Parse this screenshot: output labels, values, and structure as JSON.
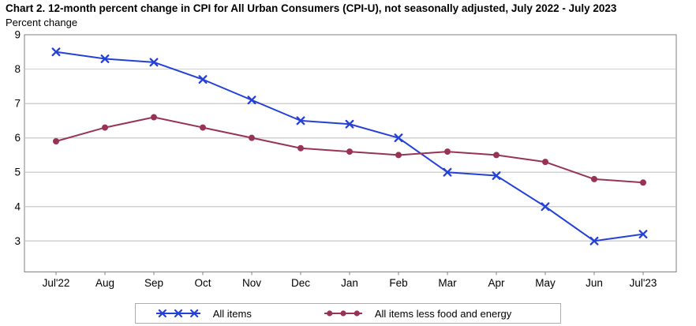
{
  "header": {
    "title": "Chart 2. 12-month percent change in CPI for All Urban Consumers (CPI-U), not seasonally adjusted, July 2022 - July 2023",
    "subtitle": "Percent change"
  },
  "chart_data": {
    "type": "line",
    "title": "Chart 2. 12-month percent change in CPI for All Urban Consumers (CPI-U), not seasonally adjusted, July 2022 - July 2023",
    "ylabel": "Percent change",
    "xlabel": "",
    "categories": [
      "Jul'22",
      "Aug",
      "Sep",
      "Oct",
      "Nov",
      "Dec",
      "Jan",
      "Feb",
      "Mar",
      "Apr",
      "May",
      "Jun",
      "Jul'23"
    ],
    "series": [
      {
        "name": "All items",
        "marker": "x",
        "color": "#2441d6",
        "values": [
          8.5,
          8.3,
          8.2,
          7.7,
          7.1,
          6.5,
          6.4,
          6.0,
          5.0,
          4.9,
          4.0,
          3.0,
          3.2
        ]
      },
      {
        "name": "All items less food and energy",
        "marker": "circle",
        "color": "#993355",
        "values": [
          5.9,
          6.3,
          6.6,
          6.3,
          6.0,
          5.7,
          5.6,
          5.5,
          5.6,
          5.5,
          5.3,
          4.8,
          4.7
        ]
      }
    ],
    "yticks": [
      3,
      4,
      5,
      6,
      7,
      8,
      9
    ],
    "ylim": [
      2.1,
      9
    ],
    "grid": true,
    "legend_position": "bottom",
    "colors": {
      "grid": "#d0d0d0",
      "axis_border": "#808080",
      "tick": "#808080",
      "text": "#000000",
      "legend_border": "#adadad"
    }
  }
}
